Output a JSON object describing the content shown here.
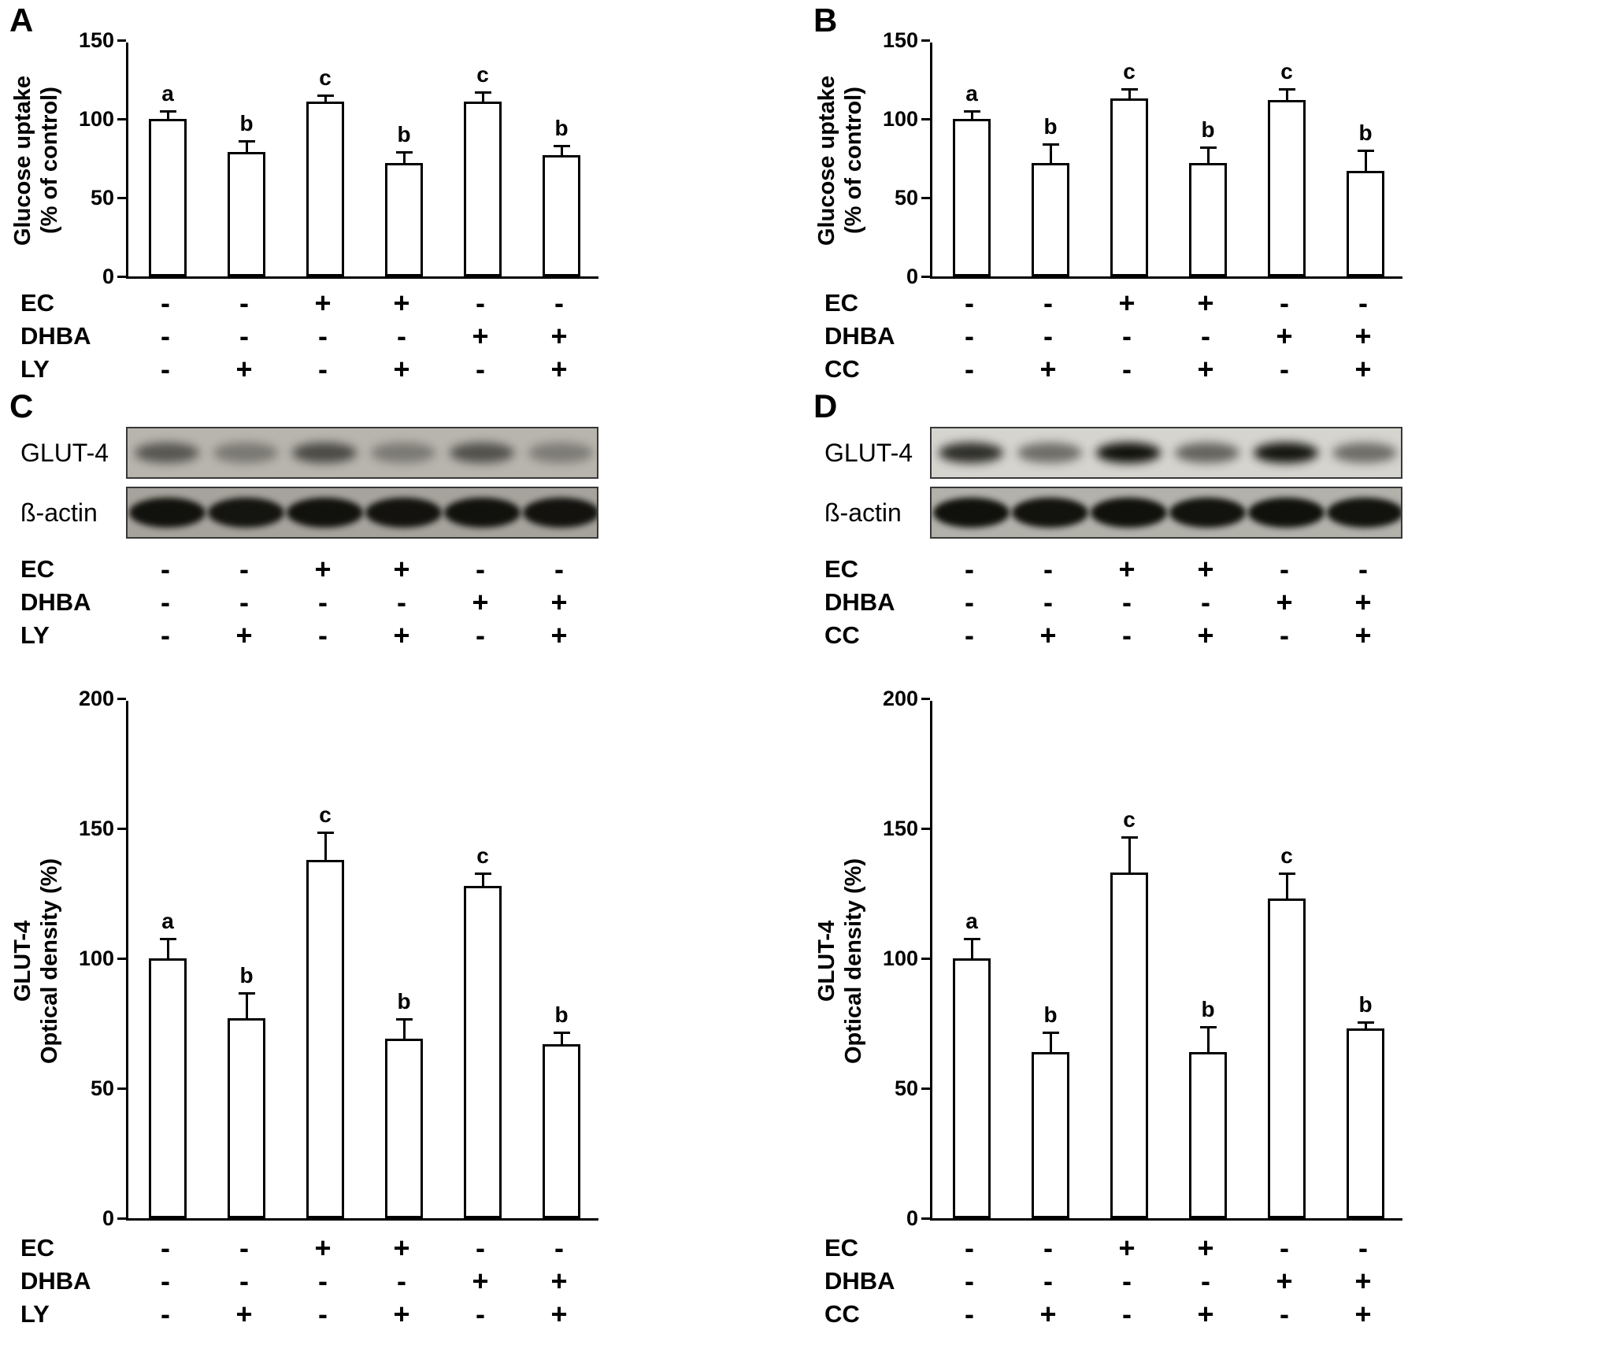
{
  "figure": {
    "background": "#ffffff",
    "bar_fill": "#ffffff",
    "bar_border": "#000000",
    "text_color": "#000000"
  },
  "chart_data": [
    {
      "type": "bar",
      "panel": "A",
      "title": "",
      "ylabel": "Glucose uptake\n(% of control)",
      "xlabel": "",
      "ylim": [
        0,
        150
      ],
      "yticks": [
        0,
        50,
        100,
        150
      ],
      "categories": [
        "Control",
        "LY",
        "EC",
        "EC+LY",
        "DHBA",
        "DHBA+LY"
      ],
      "values": [
        100,
        79,
        111,
        72,
        111,
        77
      ],
      "errors": [
        4,
        6,
        3,
        6,
        5,
        5
      ],
      "sig_letters": [
        "a",
        "b",
        "c",
        "b",
        "c",
        "b"
      ],
      "grid": false,
      "legend": false
    },
    {
      "type": "bar",
      "panel": "B",
      "title": "",
      "ylabel": "Glucose uptake\n(% of control)",
      "xlabel": "",
      "ylim": [
        0,
        150
      ],
      "yticks": [
        0,
        50,
        100,
        150
      ],
      "categories": [
        "Control",
        "CC",
        "EC",
        "EC+CC",
        "DHBA",
        "DHBA+CC"
      ],
      "values": [
        100,
        72,
        113,
        72,
        112,
        67
      ],
      "errors": [
        4,
        11,
        5,
        9,
        6,
        12
      ],
      "sig_letters": [
        "a",
        "b",
        "c",
        "b",
        "c",
        "b"
      ],
      "grid": false,
      "legend": false
    },
    {
      "type": "bar",
      "panel": "C",
      "title": "",
      "ylabel": "GLUT-4\nOptical density (%)",
      "xlabel": "",
      "ylim": [
        0,
        200
      ],
      "yticks": [
        0,
        50,
        100,
        150,
        200
      ],
      "categories": [
        "Control",
        "LY",
        "EC",
        "EC+LY",
        "DHBA",
        "DHBA+LY"
      ],
      "values": [
        100,
        77,
        138,
        69,
        128,
        67
      ],
      "errors": [
        7,
        9,
        10,
        7,
        4,
        4
      ],
      "sig_letters": [
        "a",
        "b",
        "c",
        "b",
        "c",
        "b"
      ],
      "grid": false,
      "legend": false
    },
    {
      "type": "bar",
      "panel": "D",
      "title": "",
      "ylabel": "GLUT-4\nOptical density (%)",
      "xlabel": "",
      "ylim": [
        0,
        200
      ],
      "yticks": [
        0,
        50,
        100,
        150,
        200
      ],
      "categories": [
        "Control",
        "CC",
        "EC",
        "EC+CC",
        "DHBA",
        "DHBA+CC"
      ],
      "values": [
        100,
        64,
        133,
        64,
        123,
        73
      ],
      "errors": [
        7,
        7,
        13,
        9,
        9,
        2
      ],
      "sig_letters": [
        "a",
        "b",
        "c",
        "b",
        "c",
        "b"
      ],
      "grid": false,
      "legend": false
    }
  ],
  "panels": [
    {
      "letter": "A",
      "chart_index": 0,
      "treatments": [
        {
          "label": "EC",
          "signs": [
            "-",
            "-",
            "+",
            "+",
            "-",
            "-"
          ]
        },
        {
          "label": "DHBA",
          "signs": [
            "-",
            "-",
            "-",
            "-",
            "+",
            "+"
          ]
        },
        {
          "label": "LY",
          "signs": [
            "-",
            "+",
            "-",
            "+",
            "-",
            "+"
          ]
        }
      ]
    },
    {
      "letter": "B",
      "chart_index": 1,
      "treatments": [
        {
          "label": "EC",
          "signs": [
            "-",
            "-",
            "+",
            "+",
            "-",
            "-"
          ]
        },
        {
          "label": "DHBA",
          "signs": [
            "-",
            "-",
            "-",
            "-",
            "+",
            "+"
          ]
        },
        {
          "label": "CC",
          "signs": [
            "-",
            "+",
            "-",
            "+",
            "-",
            "+"
          ]
        }
      ]
    },
    {
      "letter": "C",
      "chart_index": 2,
      "blot": {
        "rows": [
          {
            "label": "GLUT-4",
            "bg": "#b7b5ad",
            "intensity": [
              0.55,
              0.35,
              0.62,
              0.34,
              0.58,
              0.33
            ]
          },
          {
            "label": "ß-actin",
            "bg": "#a5a39b",
            "intensity": [
              0.95,
              0.93,
              0.95,
              0.94,
              0.95,
              0.94
            ]
          }
        ]
      },
      "treatments": [
        {
          "label": "EC",
          "signs": [
            "-",
            "-",
            "+",
            "+",
            "-",
            "-"
          ]
        },
        {
          "label": "DHBA",
          "signs": [
            "-",
            "-",
            "-",
            "-",
            "+",
            "+"
          ]
        },
        {
          "label": "LY",
          "signs": [
            "-",
            "+",
            "-",
            "+",
            "-",
            "+"
          ]
        }
      ]
    },
    {
      "letter": "D",
      "chart_index": 3,
      "blot": {
        "rows": [
          {
            "label": "GLUT-4",
            "bg": "#d5d4cf",
            "intensity": [
              0.82,
              0.5,
              0.97,
              0.55,
              0.95,
              0.5
            ]
          },
          {
            "label": "ß-actin",
            "bg": "#b2b1aa",
            "intensity": [
              0.96,
              0.95,
              0.96,
              0.95,
              0.96,
              0.95
            ]
          }
        ]
      },
      "treatments": [
        {
          "label": "EC",
          "signs": [
            "-",
            "-",
            "+",
            "+",
            "-",
            "-"
          ]
        },
        {
          "label": "DHBA",
          "signs": [
            "-",
            "-",
            "-",
            "-",
            "+",
            "+"
          ]
        },
        {
          "label": "CC",
          "signs": [
            "-",
            "+",
            "-",
            "+",
            "-",
            "+"
          ]
        }
      ]
    }
  ]
}
